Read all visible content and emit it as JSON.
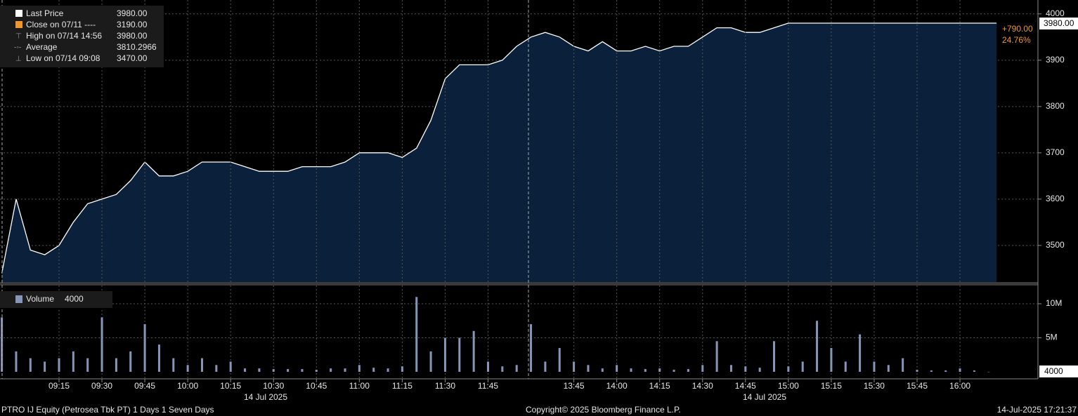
{
  "chart_data": [
    {
      "type": "area",
      "x": [
        "08:55",
        "09:00",
        "09:05",
        "09:10",
        "09:15",
        "09:20",
        "09:25",
        "09:30",
        "09:35",
        "09:40",
        "09:45",
        "09:50",
        "09:55",
        "10:00",
        "10:05",
        "10:10",
        "10:15",
        "10:20",
        "10:25",
        "10:30",
        "10:35",
        "10:40",
        "10:45",
        "10:50",
        "10:55",
        "11:00",
        "11:05",
        "11:10",
        "11:15",
        "11:20",
        "11:25",
        "11:30",
        "11:35",
        "11:40",
        "11:45",
        "11:50",
        "11:55",
        "12:00",
        "13:35",
        "13:40",
        "13:45",
        "13:50",
        "13:55",
        "14:00",
        "14:05",
        "14:10",
        "14:15",
        "14:20",
        "14:25",
        "14:30",
        "14:35",
        "14:40",
        "14:45",
        "14:50",
        "14:55",
        "15:00",
        "15:05",
        "15:10",
        "15:15",
        "15:20",
        "15:25",
        "15:30",
        "15:35",
        "15:40",
        "15:45",
        "15:50",
        "15:55",
        "16:00",
        "16:05",
        "16:10"
      ],
      "series": [
        {
          "name": "Last Price",
          "color": "#ffffff",
          "fill": "#0b203a",
          "values": [
            3440,
            3600,
            3490,
            3480,
            3500,
            3550,
            3590,
            3600,
            3610,
            3640,
            3680,
            3650,
            3650,
            3660,
            3680,
            3680,
            3680,
            3670,
            3660,
            3660,
            3660,
            3670,
            3670,
            3670,
            3680,
            3700,
            3700,
            3700,
            3690,
            3710,
            3770,
            3860,
            3890,
            3890,
            3890,
            3900,
            3930,
            3950,
            3960,
            3950,
            3930,
            3920,
            3940,
            3920,
            3920,
            3930,
            3920,
            3930,
            3930,
            3950,
            3970,
            3970,
            3960,
            3960,
            3970,
            3980,
            3980,
            3980,
            3980,
            3980,
            3980,
            3980,
            3980,
            3980,
            3980,
            3980,
            3980,
            3980,
            3980,
            3980
          ]
        }
      ],
      "stats": [
        {
          "label": "Last Price",
          "value": "3980.00"
        },
        {
          "label": "Close on 07/11 ----",
          "value": "3190.00"
        },
        {
          "label": "High on 07/14 14:56",
          "value": "3980.00"
        },
        {
          "label": "Average",
          "value": "3810.2966"
        },
        {
          "label": "Low on 07/14 09:08",
          "value": "3470.00"
        }
      ],
      "change_labels": [
        "+790.00",
        "24.76%"
      ],
      "ylim": [
        3421,
        4030
      ],
      "yticks": [
        3500,
        3600,
        3700,
        3800,
        3900,
        4000
      ],
      "grid": true
    },
    {
      "type": "bar",
      "series": [
        {
          "name": "Volume",
          "color": "#8796b8",
          "values": [
            8000000,
            3000000,
            2000000,
            1500000,
            2000000,
            3000000,
            2000000,
            8000000,
            2000000,
            3000000,
            7000000,
            4000000,
            2000000,
            1000000,
            2000000,
            1000000,
            1500000,
            500000,
            500000,
            400000,
            400000,
            400000,
            300000,
            500000,
            500000,
            1000000,
            600000,
            500000,
            800000,
            11000000,
            3000000,
            5000000,
            5000000,
            6000000,
            1500000,
            800000,
            1000000,
            7000000,
            1500000,
            3500000,
            1500000,
            1000000,
            500000,
            1000000,
            500000,
            400000,
            500000,
            300000,
            400000,
            1000000,
            4500000,
            1000000,
            800000,
            600000,
            4500000,
            800000,
            1500000,
            7500000,
            3500000,
            1500000,
            5500000,
            1500000,
            1000000,
            2000000,
            300000,
            200000,
            200000,
            500000,
            200000,
            4000
          ]
        }
      ],
      "ylim": [
        -1030000,
        12680000
      ],
      "yticks": [
        {
          "value": 5000000,
          "label": "5M"
        },
        {
          "value": 10000000,
          "label": "10M"
        }
      ],
      "xticks": [
        "09:15",
        "09:30",
        "09:45",
        "10:00",
        "10:15",
        "10:30",
        "10:45",
        "11:00",
        "11:15",
        "11:30",
        "11:45",
        "13:45",
        "14:00",
        "14:15",
        "14:30",
        "14:45",
        "15:00",
        "15:15",
        "15:30",
        "15:45",
        "16:00"
      ],
      "date_labels": [
        "14 Jul 2025",
        "14 Jul 2025"
      ],
      "grid": true
    }
  ],
  "footer": {
    "security": "PTRO IJ Equity (Petrosea Tbk PT) 1 Days 1 Seven Days",
    "copyright": "Copyright© 2025 Bloomberg Finance L.P.",
    "timestamp": "14-Jul-2025 17:21:37"
  }
}
